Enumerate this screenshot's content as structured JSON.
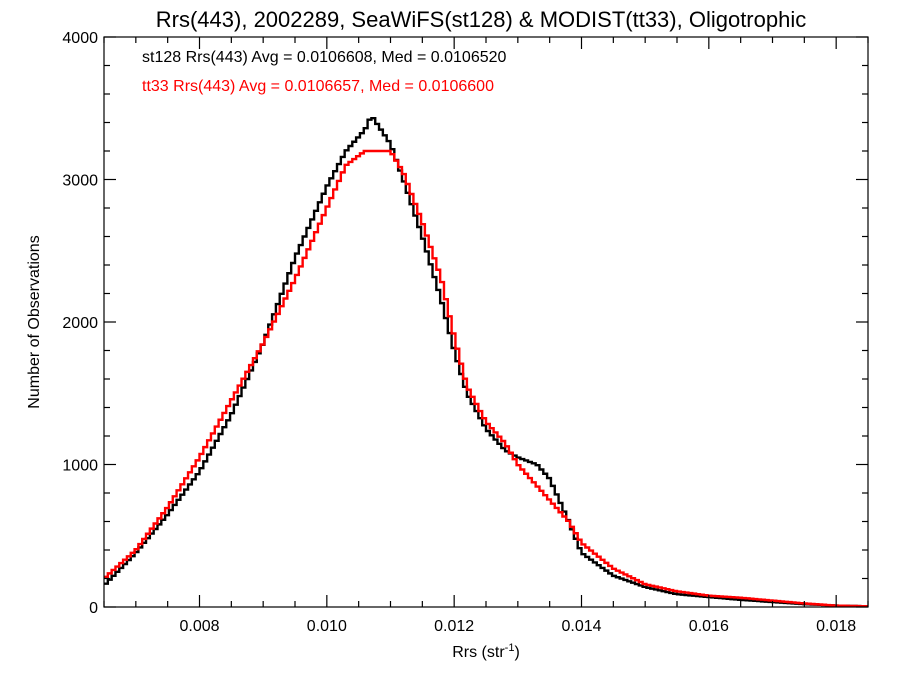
{
  "chart_data": {
    "type": "line",
    "title": "Rrs(443), 2002289, SeaWiFS(st128) & MODIST(tt33), Oligotrophic",
    "xlabel": "Rrs (str",
    "xlabel_sup": "-1",
    "xlabel_close": ")",
    "ylabel": "Number of Observations",
    "xlim": [
      0.0065,
      0.0185
    ],
    "ylim": [
      0,
      4000
    ],
    "x_ticks": [
      0.008,
      0.01,
      0.012,
      0.014,
      0.016,
      0.018
    ],
    "x_tick_labels": [
      "0.008",
      "0.010",
      "0.012",
      "0.014",
      "0.016",
      "0.018"
    ],
    "y_ticks": [
      0,
      1000,
      2000,
      3000,
      4000
    ],
    "y_tick_labels": [
      "0",
      "1000",
      "2000",
      "3000",
      "4000"
    ],
    "grid": false,
    "legend": "top-left",
    "annotations": [
      {
        "text": "st128 Rrs(443) Avg = 0.0106608, Med = 0.0106520",
        "color": "#000000"
      },
      {
        "text": "tt33 Rrs(443) Avg = 0.0106657, Med = 0.0106600",
        "color": "#ff0000"
      }
    ],
    "series": [
      {
        "name": "st128",
        "color": "#000000",
        "x": [
          0.0065,
          0.007,
          0.0075,
          0.008,
          0.0085,
          0.009,
          0.0095,
          0.01,
          0.0103,
          0.0106,
          0.0107,
          0.011,
          0.0112,
          0.0115,
          0.0118,
          0.012,
          0.0122,
          0.0125,
          0.0128,
          0.013,
          0.0133,
          0.0135,
          0.0138,
          0.014,
          0.0145,
          0.015,
          0.0155,
          0.016,
          0.0165,
          0.017,
          0.0175,
          0.018,
          0.0185
        ],
        "y": [
          150,
          380,
          650,
          950,
          1350,
          1850,
          2450,
          2950,
          3200,
          3350,
          3450,
          3250,
          3000,
          2600,
          2150,
          1800,
          1500,
          1250,
          1100,
          1050,
          1000,
          900,
          600,
          380,
          220,
          140,
          90,
          70,
          50,
          35,
          20,
          10,
          5
        ]
      },
      {
        "name": "tt33",
        "color": "#ff0000",
        "x": [
          0.0065,
          0.007,
          0.0075,
          0.008,
          0.0085,
          0.009,
          0.0095,
          0.01,
          0.0103,
          0.0106,
          0.0107,
          0.011,
          0.0112,
          0.0115,
          0.0118,
          0.012,
          0.0122,
          0.0125,
          0.0128,
          0.013,
          0.0133,
          0.0135,
          0.0138,
          0.014,
          0.0145,
          0.015,
          0.0155,
          0.016,
          0.0165,
          0.017,
          0.0175,
          0.018,
          0.0185
        ],
        "y": [
          200,
          400,
          700,
          1050,
          1450,
          1850,
          2300,
          2800,
          3100,
          3200,
          3200,
          3200,
          3050,
          2700,
          2300,
          1900,
          1550,
          1300,
          1150,
          1000,
          850,
          750,
          600,
          450,
          270,
          160,
          110,
          80,
          65,
          45,
          25,
          10,
          5
        ]
      }
    ]
  }
}
